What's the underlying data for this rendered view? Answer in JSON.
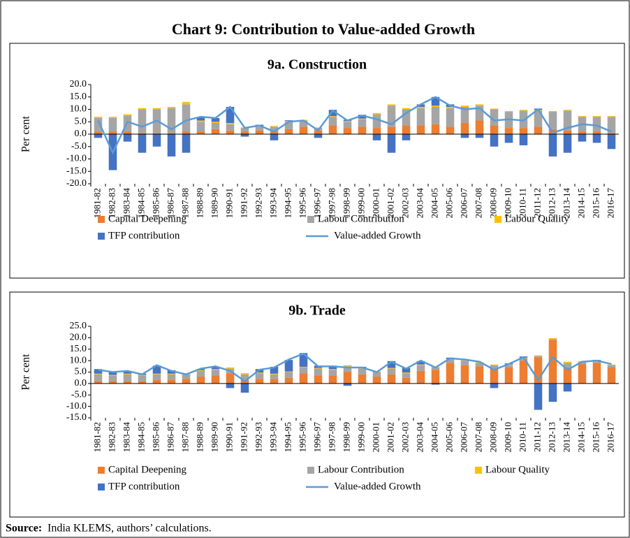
{
  "title": "Chart 9: Contribution to Value-added Growth",
  "source_label": "Source:",
  "source_text": "India KLEMS, authors’ calculations.",
  "chart_data": [
    {
      "type": "bar",
      "stacked": true,
      "title": "9a. Construction",
      "ylabel": "Per cent",
      "categories": [
        "1981-82",
        "1982-83",
        "1983-84",
        "1984-85",
        "1985-86",
        "1986-87",
        "1987-88",
        "1988-89",
        "1989-90",
        "1990-91",
        "1991-92",
        "1992-93",
        "1993-94",
        "1994-95",
        "1995-96",
        "1996-97",
        "1997-98",
        "1998-99",
        "1999-00",
        "2000-01",
        "2001-02",
        "2002-03",
        "2003-04",
        "2004-05",
        "2005-06",
        "2006-07",
        "2007-08",
        "2008-09",
        "2009-10",
        "2010-11",
        "2011-12",
        "2012-13",
        "2013-14",
        "2014-15",
        "2015-16",
        "2016-17"
      ],
      "ylim": [
        -20,
        20
      ],
      "yticks": [
        {
          "value": 20,
          "label": "20.0"
        },
        {
          "value": 15,
          "label": "15.0"
        },
        {
          "value": 10,
          "label": "10.0"
        },
        {
          "value": 5,
          "label": "5.0"
        },
        {
          "value": 0,
          "label": "0.0"
        },
        {
          "value": -5,
          "label": "-5.0"
        },
        {
          "value": -10,
          "label": "-10.0"
        },
        {
          "value": -15,
          "label": "-15.0"
        },
        {
          "value": -20,
          "label": "-20.0"
        }
      ],
      "series": [
        {
          "name": "Capital Deepening",
          "color": "#ed7d31",
          "values": [
            1,
            1,
            1,
            0.5,
            0.5,
            0.5,
            1,
            1,
            2,
            1.5,
            1,
            1.5,
            1,
            2,
            3,
            1.5,
            3.5,
            2.5,
            3,
            2.5,
            3,
            3.5,
            3.5,
            4,
            3,
            4.5,
            5.5,
            3.5,
            2.5,
            2.5,
            3,
            2,
            1.5,
            1,
            1,
            0.5
          ]
        },
        {
          "name": "Labour Contribution",
          "color": "#a5a5a5",
          "values": [
            5.5,
            5.5,
            6.5,
            9.5,
            9.5,
            10,
            11,
            4,
            2.5,
            2.5,
            1.5,
            1.5,
            2,
            3,
            2.5,
            1,
            3.5,
            2.5,
            3,
            5.5,
            8.5,
            6.5,
            7,
            7,
            7.5,
            6.5,
            6,
            6.5,
            6.5,
            7,
            6.5,
            7,
            8,
            6,
            6,
            6.5
          ]
        },
        {
          "name": "Labour Quality",
          "color": "#ffc000",
          "values": [
            0.5,
            0.5,
            0.5,
            0.5,
            0.5,
            0.5,
            1,
            0.5,
            0.5,
            0.5,
            0.2,
            0.3,
            0.3,
            0.3,
            0.3,
            0.2,
            0.3,
            0.3,
            0.3,
            0.5,
            0.5,
            0.5,
            0.5,
            0.5,
            0.5,
            0.5,
            0.5,
            0.3,
            0.3,
            0.3,
            0.3,
            0.3,
            0.3,
            0.3,
            0.3,
            0.3
          ]
        },
        {
          "name": "TFP contribution",
          "color": "#4472c4",
          "values": [
            -1.5,
            -14.5,
            -3,
            -7.5,
            -5,
            -9,
            -7.5,
            1.5,
            1.5,
            6.5,
            -1,
            0.5,
            -2.5,
            0.3,
            0,
            -1.5,
            2.5,
            0.5,
            1.5,
            -2.5,
            -7.5,
            -2.5,
            1,
            3.5,
            1,
            -1.5,
            -1.5,
            -5,
            -3.5,
            -4.5,
            0.5,
            -9,
            -7.5,
            -3,
            -3.5,
            -6
          ]
        },
        {
          "name": "Value-added Growth",
          "color": "#5b9bd5",
          "type": "line",
          "values": [
            5.5,
            -7.5,
            5,
            3,
            5.5,
            2,
            5.5,
            7,
            6.5,
            11,
            2.5,
            3.5,
            1,
            5,
            5.5,
            1.5,
            9.5,
            5.5,
            7.5,
            6,
            4,
            8.5,
            12,
            15,
            11.5,
            10,
            10.5,
            5.5,
            6,
            5.5,
            10,
            0.5,
            2.5,
            4,
            3.5,
            1
          ]
        }
      ]
    },
    {
      "type": "bar",
      "stacked": true,
      "title": "9b. Trade",
      "ylabel": "Per cent",
      "categories": [
        "1981-82",
        "1982-83",
        "1983-84",
        "1984-85",
        "1985-86",
        "1986-87",
        "1987-88",
        "1988-89",
        "1989-90",
        "1990-91",
        "1991-92",
        "1992-93",
        "1993-94",
        "1994-95",
        "1995-96",
        "1996-97",
        "1997-98",
        "1998-99",
        "1999-00",
        "2000-01",
        "2001-02",
        "2002-03",
        "2003-04",
        "2004-05",
        "2005-06",
        "2006-07",
        "2007-08",
        "2008-09",
        "2009-10",
        "2010-11",
        "2011-12",
        "2012-13",
        "2013-14",
        "2014-15",
        "2015-16",
        "2016-17"
      ],
      "ylim": [
        -15,
        25
      ],
      "yticks": [
        {
          "value": 25,
          "label": "25.0"
        },
        {
          "value": 20,
          "label": "20.0"
        },
        {
          "value": 15,
          "label": "15.0"
        },
        {
          "value": 10,
          "label": "10.0"
        },
        {
          "value": 5,
          "label": "5.0"
        },
        {
          "value": 0,
          "label": "0.0"
        },
        {
          "value": -5,
          "label": "-5.0"
        },
        {
          "value": -10,
          "label": "-10.0"
        },
        {
          "value": -15,
          "label": "-15.0"
        }
      ],
      "series": [
        {
          "name": "Capital Deepening",
          "color": "#ed7d31",
          "values": [
            1,
            1,
            1,
            1,
            1.5,
            1.5,
            2,
            3,
            3.5,
            4.5,
            1.5,
            2,
            2,
            2.5,
            4.5,
            3.5,
            3.5,
            5,
            4,
            3,
            4,
            2.5,
            5.5,
            6,
            9,
            8,
            7.5,
            6.5,
            7,
            10,
            11.5,
            19,
            7,
            8.5,
            9,
            7
          ]
        },
        {
          "name": "Labour Contribution",
          "color": "#a5a5a5",
          "values": [
            3,
            2.5,
            3,
            2.5,
            2.5,
            2.5,
            2,
            2.5,
            2.5,
            2,
            2.5,
            2.5,
            2,
            2.5,
            2.5,
            3,
            2.5,
            2.5,
            2.5,
            2,
            2.5,
            2,
            2.5,
            1,
            1.5,
            2,
            1.5,
            1.5,
            1,
            1,
            0.5,
            0.5,
            2,
            1,
            0.5,
            1
          ]
        },
        {
          "name": "Labour Quality",
          "color": "#ffc000",
          "values": [
            0.3,
            0.3,
            0.3,
            0.3,
            0.3,
            0.3,
            0.3,
            0.3,
            0.3,
            0.5,
            0.5,
            0.3,
            0.3,
            0.3,
            0.3,
            0.3,
            0.3,
            0.5,
            0.3,
            0.3,
            0.3,
            0.3,
            0.3,
            0.3,
            0.3,
            0.3,
            0.3,
            0.3,
            0.3,
            0.3,
            0.3,
            0.3,
            0.5,
            0.3,
            0.3,
            0.3
          ]
        },
        {
          "name": "TFP contribution",
          "color": "#4472c4",
          "values": [
            2,
            1.5,
            1,
            0.5,
            3.5,
            1.5,
            0,
            0.5,
            1,
            -2,
            -4,
            1.5,
            3,
            5,
            6,
            1,
            1.5,
            -1,
            0.5,
            0,
            3,
            2,
            1.5,
            -0.5,
            0.5,
            0,
            0,
            -2,
            0.5,
            0.5,
            -11.5,
            -8,
            -3.5,
            0,
            0.5,
            0
          ]
        },
        {
          "name": "Value-added Growth",
          "color": "#5b9bd5",
          "type": "line",
          "values": [
            6,
            5,
            5.5,
            4,
            8,
            5.5,
            4,
            6.5,
            7.5,
            5.5,
            1,
            6,
            7,
            10.5,
            13,
            7.5,
            7.5,
            7,
            7,
            5,
            9.5,
            6.5,
            10,
            7,
            11,
            10.5,
            9.5,
            6,
            8.5,
            11.5,
            1.5,
            11.5,
            6,
            9.5,
            10,
            8.5
          ]
        }
      ]
    }
  ]
}
